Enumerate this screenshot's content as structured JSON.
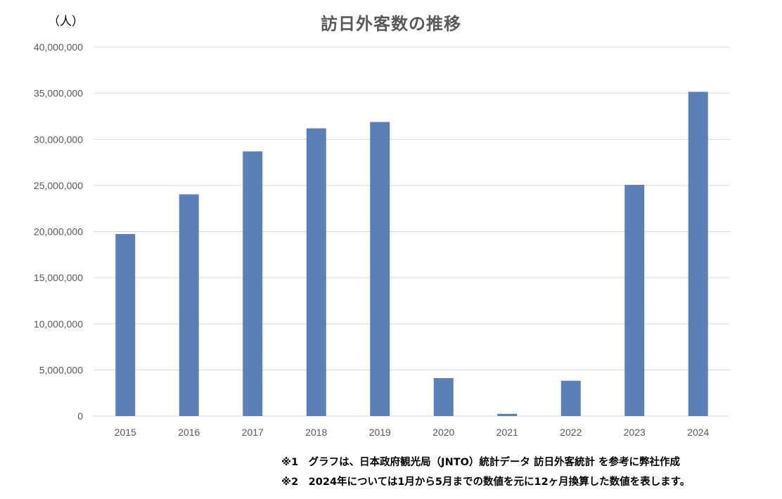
{
  "chart_data": {
    "type": "bar",
    "title": "訪日外客数の推移",
    "unit_label": "（人）",
    "categories": [
      "2015",
      "2016",
      "2017",
      "2018",
      "2019",
      "2020",
      "2021",
      "2022",
      "2023",
      "2024"
    ],
    "values": [
      19737409,
      24039700,
      28691073,
      31191856,
      31882049,
      4115828,
      245862,
      3832110,
      25066100,
      35150000
    ],
    "ylim": [
      0,
      40000000
    ],
    "yticks": [
      0,
      5000000,
      10000000,
      15000000,
      20000000,
      25000000,
      30000000,
      35000000,
      40000000
    ],
    "ytick_labels": [
      "0",
      "5,000,000",
      "10,000,000",
      "15,000,000",
      "20,000,000",
      "25,000,000",
      "30,000,000",
      "35,000,000",
      "40,000,000"
    ],
    "grid": true,
    "bar_color": "#5b80b8",
    "grid_color": "#d9d9d9"
  },
  "notes": [
    "※1　グラフは、日本政府観光局（JNTO）統計データ 訪日外客統計 を参考に弊社作成",
    "※2　2024年については1月から5月までの数値を元に12ヶ月換算した数値を表します。"
  ]
}
